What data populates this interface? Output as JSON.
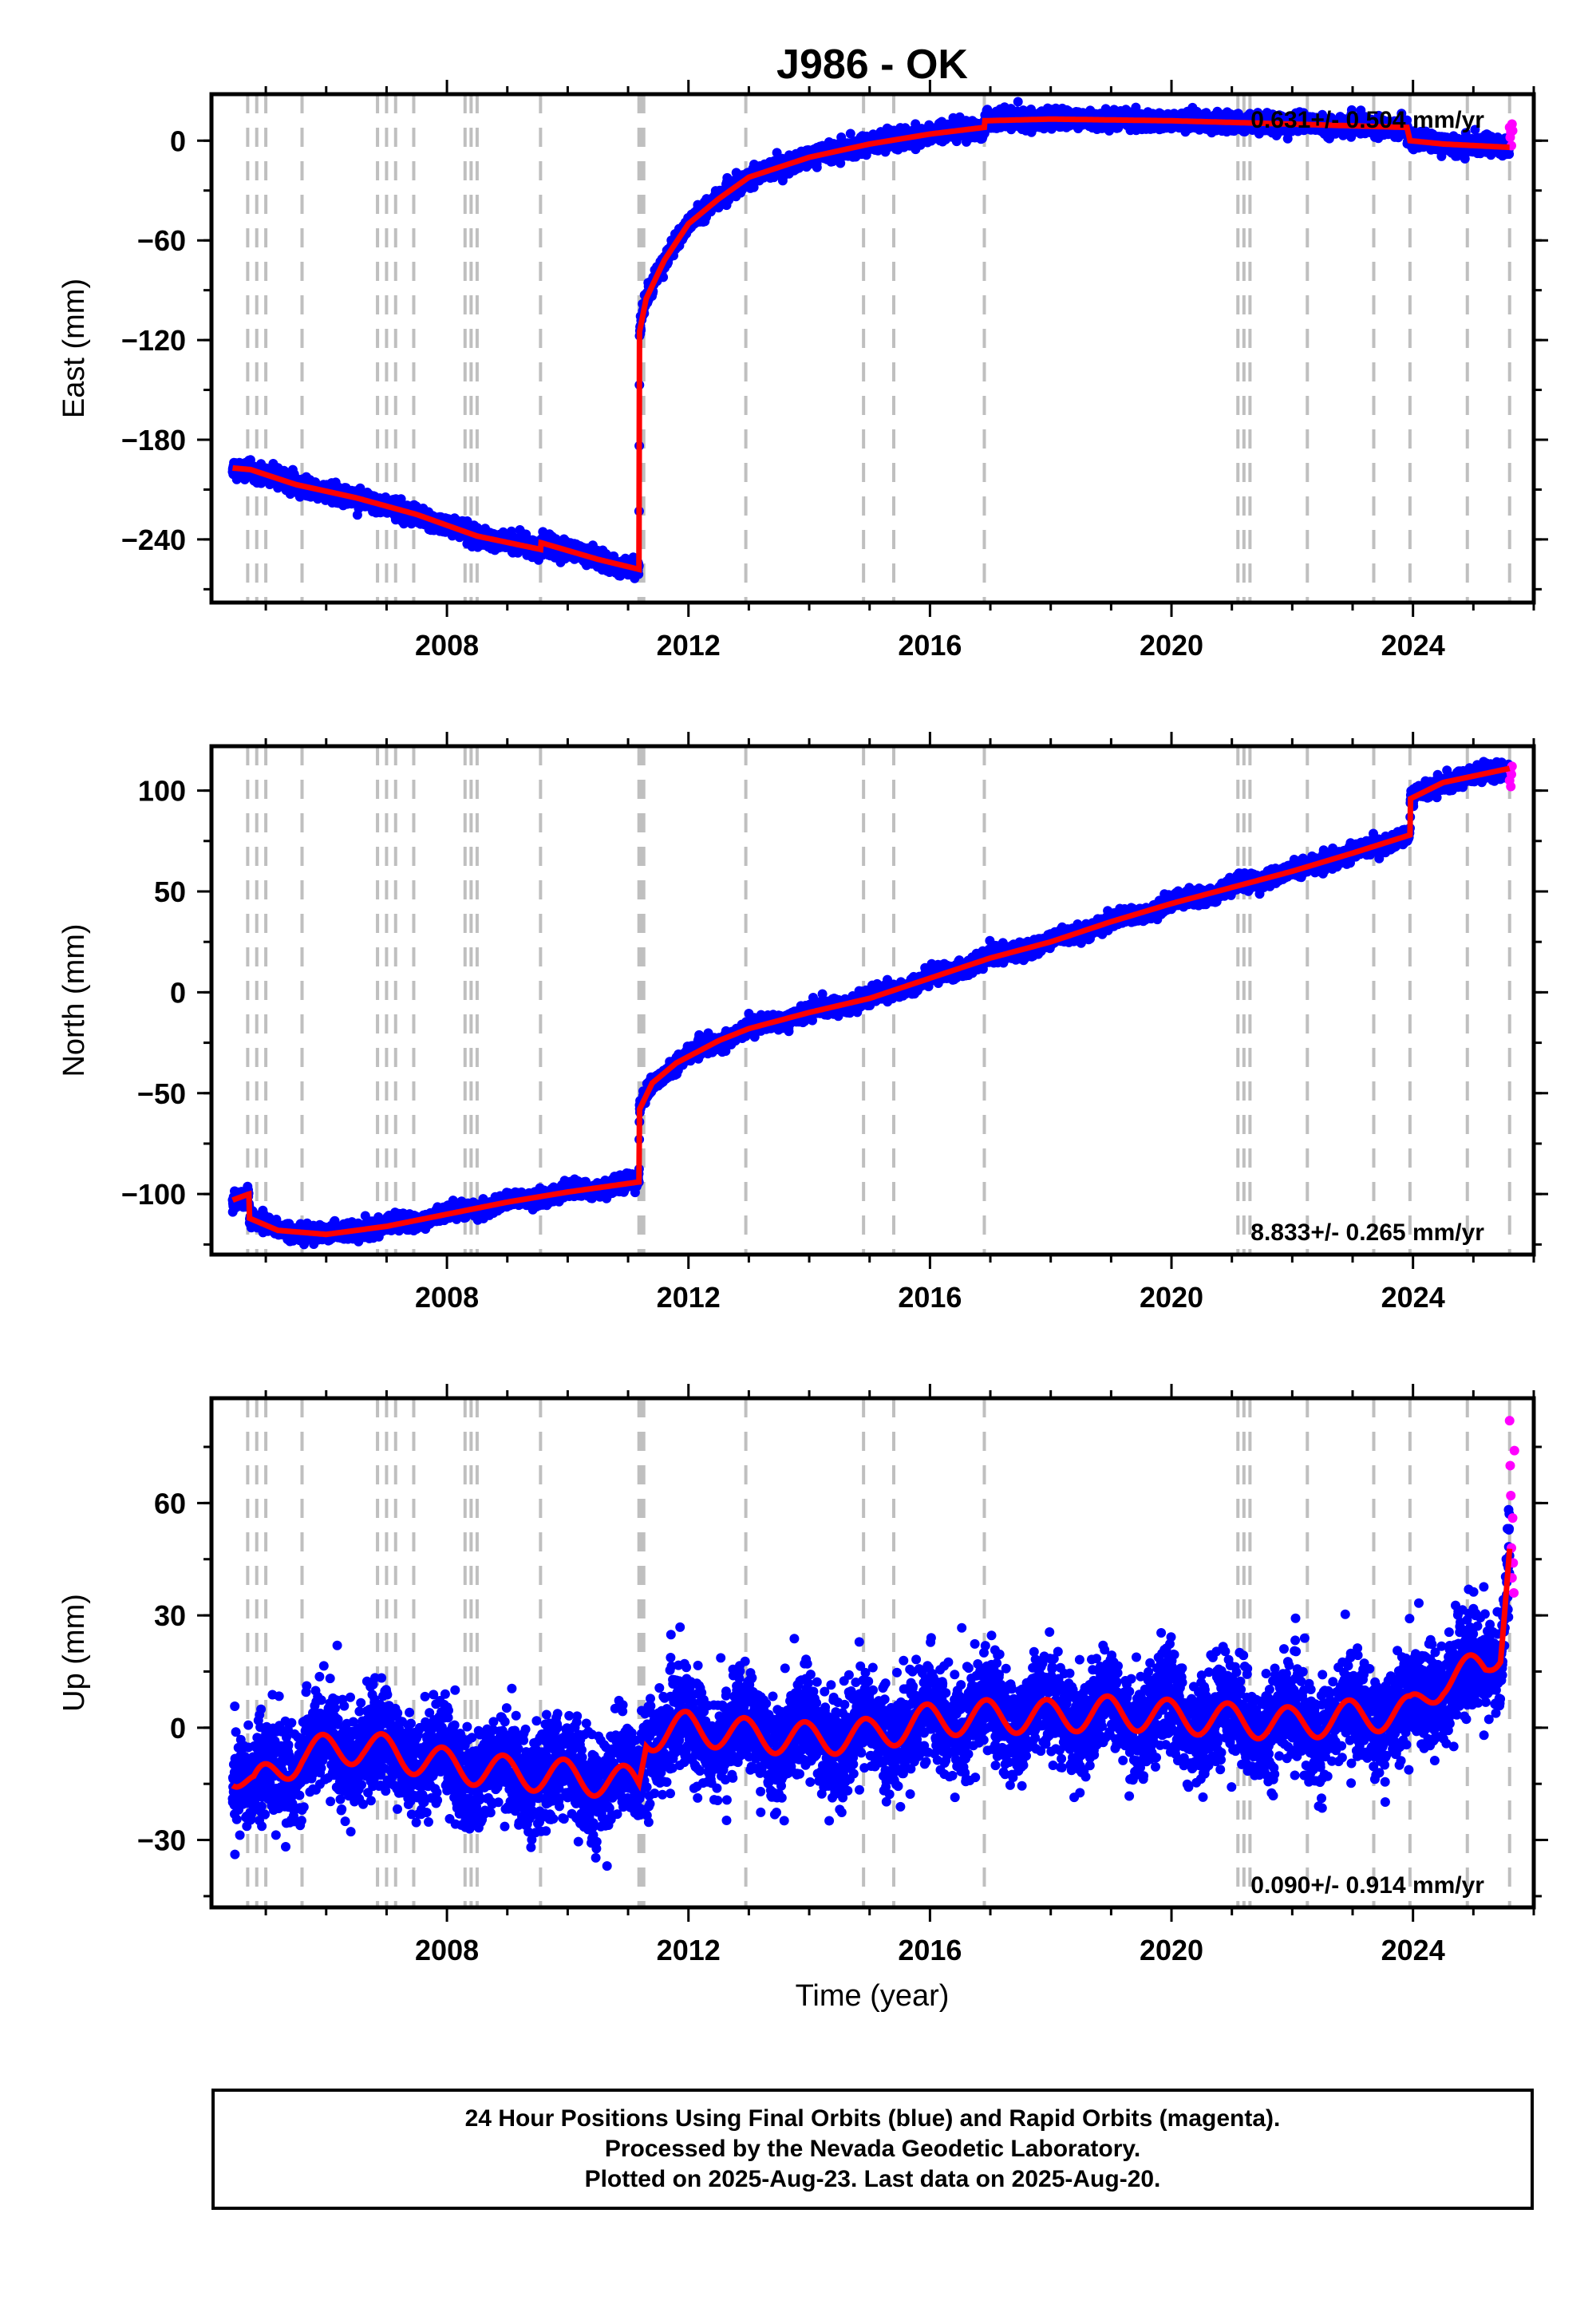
{
  "chart_data": {
    "title": "J986 - OK",
    "xlabel": "Time (year)",
    "xlim": [
      2004.1,
      2026.0
    ],
    "xticks": [
      2008,
      2012,
      2016,
      2020,
      2024
    ],
    "xtick_labels": [
      "2008",
      "2012",
      "2016",
      "2020",
      "2024"
    ],
    "vertical_lines": [
      2004.7,
      2004.85,
      2005.0,
      2005.6,
      2006.85,
      2007.0,
      2007.15,
      2007.45,
      2008.3,
      2008.4,
      2008.5,
      2009.55,
      2011.18,
      2011.22,
      2011.26,
      2012.95,
      2014.9,
      2015.4,
      2016.9,
      2021.1,
      2021.2,
      2021.3,
      2022.25,
      2023.35,
      2023.95,
      2024.9,
      2025.6
    ],
    "colors": {
      "final_orbits": "#0000ff",
      "rapid_orbits": "#ff00ff",
      "model": "#ff0000",
      "event_lines": "#bfbfbf"
    },
    "panels": [
      {
        "name": "east",
        "type": "scatter",
        "ylabel": "East (mm)",
        "ylim": [
          -278,
          28
        ],
        "yticks": [
          0,
          -60,
          -120,
          -180,
          -240
        ],
        "ytick_labels": [
          "0",
          "−60",
          "−120",
          "−180",
          "−240"
        ],
        "rate": "0.631+/- 0.504 mm/yr",
        "rate_position": "top-right",
        "noise": 2.5,
        "seasonal": 0.8,
        "model": [
          [
            2004.45,
            -197
          ],
          [
            2004.75,
            -198
          ],
          [
            2005.5,
            -207
          ],
          [
            2006.5,
            -215
          ],
          [
            2007.5,
            -225
          ],
          [
            2008.5,
            -238
          ],
          [
            2009.55,
            -246
          ],
          [
            2009.56,
            -242
          ],
          [
            2010.5,
            -252
          ],
          [
            2011.18,
            -258
          ],
          [
            2011.19,
            -115
          ],
          [
            2011.3,
            -95
          ],
          [
            2011.6,
            -72
          ],
          [
            2012.0,
            -50
          ],
          [
            2012.5,
            -35
          ],
          [
            2013.0,
            -22
          ],
          [
            2014.0,
            -10
          ],
          [
            2015.0,
            -2
          ],
          [
            2016.0,
            4
          ],
          [
            2016.9,
            8
          ],
          [
            2016.91,
            12
          ],
          [
            2018.0,
            13
          ],
          [
            2020.0,
            12
          ],
          [
            2022.0,
            10
          ],
          [
            2023.9,
            8
          ],
          [
            2023.95,
            0
          ],
          [
            2024.5,
            -2
          ],
          [
            2025.6,
            -4
          ]
        ],
        "rapid_points": [
          [
            2025.6,
            8
          ],
          [
            2025.61,
            2
          ],
          [
            2025.62,
            5
          ],
          [
            2025.63,
            -3
          ],
          [
            2025.64,
            10
          ],
          [
            2025.65,
            6
          ]
        ]
      },
      {
        "name": "north",
        "type": "scatter",
        "ylabel": "North (mm)",
        "ylim": [
          -130,
          122
        ],
        "yticks": [
          100,
          50,
          0,
          -50,
          -100
        ],
        "ytick_labels": [
          "100",
          "50",
          "0",
          "−50",
          "−100"
        ],
        "rate": "8.833+/- 0.265 mm/yr",
        "rate_position": "bottom-right",
        "noise": 1.8,
        "seasonal": 1.2,
        "model": [
          [
            2004.45,
            -103
          ],
          [
            2004.72,
            -100
          ],
          [
            2004.73,
            -112
          ],
          [
            2005.2,
            -118
          ],
          [
            2006.0,
            -120
          ],
          [
            2007.0,
            -116
          ],
          [
            2008.0,
            -110
          ],
          [
            2009.0,
            -104
          ],
          [
            2010.0,
            -99
          ],
          [
            2011.18,
            -94
          ],
          [
            2011.19,
            -58
          ],
          [
            2011.4,
            -45
          ],
          [
            2011.8,
            -35
          ],
          [
            2012.5,
            -24
          ],
          [
            2013.0,
            -18
          ],
          [
            2014.0,
            -10
          ],
          [
            2015.0,
            -3
          ],
          [
            2016.0,
            7
          ],
          [
            2017.0,
            17
          ],
          [
            2018.0,
            25
          ],
          [
            2019.0,
            35
          ],
          [
            2020.0,
            44
          ],
          [
            2021.0,
            52
          ],
          [
            2022.0,
            60
          ],
          [
            2023.0,
            69
          ],
          [
            2023.95,
            78
          ],
          [
            2023.96,
            96
          ],
          [
            2024.5,
            104
          ],
          [
            2025.6,
            111
          ]
        ],
        "rapid_points": [
          [
            2025.6,
            105
          ],
          [
            2025.61,
            110
          ],
          [
            2025.62,
            102
          ],
          [
            2025.63,
            108
          ],
          [
            2025.64,
            112
          ]
        ]
      },
      {
        "name": "up",
        "type": "scatter",
        "ylabel": "Up (mm)",
        "ylim": [
          -48,
          88
        ],
        "yticks": [
          60,
          30,
          0,
          -30
        ],
        "ytick_labels": [
          "60",
          "30",
          "0",
          "−30"
        ],
        "rate": "0.090+/- 0.914 mm/yr",
        "rate_position": "bottom-right",
        "noise": 6.5,
        "seasonal": 4.5,
        "model": [
          [
            2004.45,
            -11
          ],
          [
            2004.8,
            -16
          ],
          [
            2005.6,
            -7
          ],
          [
            2006.6,
            -5
          ],
          [
            2008.0,
            -10
          ],
          [
            2009.0,
            -12
          ],
          [
            2010.0,
            -13
          ],
          [
            2011.18,
            -15
          ],
          [
            2011.3,
            -2
          ],
          [
            2012.0,
            0
          ],
          [
            2013.0,
            -2
          ],
          [
            2014.0,
            -3
          ],
          [
            2015.0,
            -2
          ],
          [
            2016.0,
            2
          ],
          [
            2017.0,
            3
          ],
          [
            2018.0,
            3
          ],
          [
            2019.0,
            4
          ],
          [
            2020.0,
            3
          ],
          [
            2021.0,
            2
          ],
          [
            2022.0,
            1
          ],
          [
            2023.0,
            3
          ],
          [
            2023.95,
            4
          ],
          [
            2024.5,
            13
          ],
          [
            2025.2,
            16
          ],
          [
            2025.45,
            22
          ],
          [
            2025.6,
            50
          ]
        ],
        "rapid_points": [
          [
            2025.6,
            82
          ],
          [
            2025.61,
            70
          ],
          [
            2025.62,
            62
          ],
          [
            2025.63,
            48
          ],
          [
            2025.64,
            40
          ],
          [
            2025.65,
            56
          ],
          [
            2025.66,
            44
          ],
          [
            2025.67,
            36
          ],
          [
            2025.68,
            74
          ]
        ]
      }
    ]
  },
  "caption": {
    "line1": "24 Hour Positions Using Final Orbits (blue) and Rapid Orbits (magenta).",
    "line2": "Processed by the Nevada Geodetic Laboratory.",
    "line3": "Plotted on 2025-Aug-23. Last data on 2025-Aug-20."
  }
}
